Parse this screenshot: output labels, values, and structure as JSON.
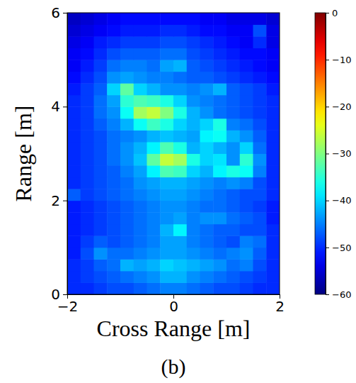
{
  "chart_data": {
    "type": "heatmap",
    "x_label": "Cross Range [m]",
    "y_label": "Range [m]",
    "caption": "(b)",
    "xlim": [
      -2,
      2
    ],
    "ylim": [
      0,
      6
    ],
    "xticks": [
      {
        "value": -2,
        "label": "−2"
      },
      0,
      2
    ],
    "yticks": [
      0,
      2,
      4,
      6
    ],
    "x": [
      -1.875,
      -1.625,
      -1.375,
      -1.125,
      -0.875,
      -0.625,
      -0.375,
      -0.125,
      0.125,
      0.375,
      0.625,
      0.875,
      1.125,
      1.375,
      1.625,
      1.875
    ],
    "y": [
      0.125,
      0.375,
      0.625,
      0.875,
      1.125,
      1.375,
      1.625,
      1.875,
      2.125,
      2.375,
      2.625,
      2.875,
      3.125,
      3.375,
      3.625,
      3.875,
      4.125,
      4.375,
      4.625,
      4.875,
      5.125,
      5.375,
      5.625,
      5.875
    ],
    "cells": [
      [
        -50,
        -50,
        -49,
        -48,
        -48,
        -47,
        -46,
        -45,
        -45,
        -46,
        -47,
        -48,
        -48,
        -49,
        -50,
        -50
      ],
      [
        -50,
        -49,
        -48,
        -47,
        -46,
        -45,
        -44,
        -42,
        -42,
        -44,
        -45,
        -46,
        -47,
        -48,
        -49,
        -50
      ],
      [
        -50,
        -49,
        -47,
        -46,
        -42,
        -43,
        -42,
        -40,
        -41,
        -42,
        -43,
        -44,
        -46,
        -45,
        -48,
        -50
      ],
      [
        -51,
        -48,
        -44,
        -46,
        -46,
        -45,
        -44,
        -43,
        -43,
        -44,
        -45,
        -46,
        -45,
        -44,
        -47,
        -50
      ],
      [
        -51,
        -49,
        -47,
        -48,
        -47,
        -46,
        -45,
        -43,
        -43,
        -45,
        -46,
        -47,
        -48,
        -45,
        -46,
        -50
      ],
      [
        -51,
        -50,
        -49,
        -48,
        -47,
        -46,
        -45,
        -42,
        -38,
        -45,
        -46,
        -47,
        -47,
        -48,
        -48,
        -50
      ],
      [
        -51,
        -50,
        -49,
        -48,
        -47,
        -46,
        -45,
        -44,
        -43,
        -45,
        -44,
        -44,
        -46,
        -47,
        -48,
        -51
      ],
      [
        -51,
        -50,
        -49,
        -48,
        -47,
        -46,
        -45,
        -44,
        -44,
        -45,
        -46,
        -46,
        -47,
        -48,
        -49,
        -51
      ],
      [
        -47,
        -49,
        -48,
        -47,
        -46,
        -45,
        -44,
        -43,
        -43,
        -44,
        -45,
        -46,
        -47,
        -48,
        -48,
        -50
      ],
      [
        -50,
        -49,
        -48,
        -47,
        -46,
        -44,
        -43,
        -42,
        -42,
        -43,
        -44,
        -45,
        -44,
        -45,
        -48,
        -50
      ],
      [
        -50,
        -49,
        -48,
        -47,
        -45,
        -43,
        -38,
        -33,
        -34,
        -40,
        -42,
        -38,
        -36,
        -37,
        -45,
        -50
      ],
      [
        -50,
        -49,
        -48,
        -46,
        -44,
        -41,
        -32,
        -26,
        -28,
        -36,
        -40,
        -39,
        -44,
        -35,
        -44,
        -50
      ],
      [
        -50,
        -49,
        -48,
        -46,
        -44,
        -42,
        -38,
        -33,
        -36,
        -42,
        -40,
        -42,
        -44,
        -40,
        -46,
        -50
      ],
      [
        -50,
        -49,
        -48,
        -46,
        -45,
        -44,
        -42,
        -41,
        -42,
        -43,
        -38,
        -37,
        -42,
        -44,
        -47,
        -50
      ],
      [
        -50,
        -49,
        -47,
        -45,
        -42,
        -37,
        -34,
        -36,
        -40,
        -42,
        -40,
        -36,
        -45,
        -46,
        -48,
        -50
      ],
      [
        -50,
        -49,
        -46,
        -44,
        -37,
        -28,
        -26,
        -30,
        -36,
        -42,
        -44,
        -46,
        -47,
        -48,
        -49,
        -50
      ],
      [
        -50,
        -49,
        -46,
        -43,
        -35,
        -33,
        -34,
        -36,
        -40,
        -44,
        -45,
        -46,
        -47,
        -48,
        -49,
        -50
      ],
      [
        -51,
        -49,
        -47,
        -40,
        -32,
        -40,
        -42,
        -44,
        -44,
        -45,
        -44,
        -42,
        -47,
        -48,
        -49,
        -51
      ],
      [
        -52,
        -50,
        -48,
        -44,
        -43,
        -44,
        -45,
        -45,
        -46,
        -47,
        -47,
        -48,
        -49,
        -50,
        -51,
        -52
      ],
      [
        -53,
        -51,
        -49,
        -46,
        -45,
        -45,
        -46,
        -43,
        -42,
        -47,
        -48,
        -49,
        -50,
        -51,
        -52,
        -53
      ],
      [
        -53,
        -52,
        -50,
        -48,
        -47,
        -47,
        -47,
        -46,
        -46,
        -48,
        -49,
        -50,
        -51,
        -52,
        -52,
        -53
      ],
      [
        -54,
        -53,
        -51,
        -50,
        -49,
        -49,
        -49,
        -48,
        -48,
        -49,
        -50,
        -51,
        -52,
        -53,
        -50,
        -54
      ],
      [
        -55,
        -54,
        -53,
        -52,
        -51,
        -51,
        -51,
        -50,
        -50,
        -51,
        -52,
        -52,
        -53,
        -53,
        -48,
        -54
      ],
      [
        -56,
        -55,
        -54,
        -53,
        -52,
        -52,
        -52,
        -52,
        -52,
        -52,
        -53,
        -53,
        -54,
        -54,
        -54,
        -55
      ]
    ],
    "colorbar": {
      "range": [
        -60,
        0
      ],
      "ticks": [
        0,
        {
          "value": -10,
          "label": "−10"
        },
        {
          "value": -20,
          "label": "−20"
        },
        {
          "value": -30,
          "label": "−30"
        },
        {
          "value": -40,
          "label": "−40"
        },
        {
          "value": -50,
          "label": "−50"
        },
        {
          "value": -60,
          "label": "−60"
        }
      ]
    }
  }
}
